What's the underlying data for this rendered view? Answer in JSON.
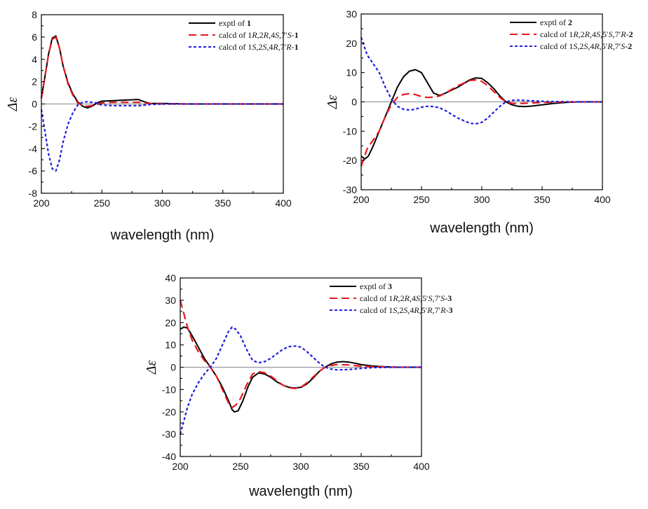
{
  "chart_data": [
    {
      "type": "line",
      "xlabel": "wavelength (nm)",
      "ylabel": "Δε",
      "xlim": [
        200,
        400
      ],
      "ylim": [
        -8,
        8
      ],
      "xticks": [
        200,
        250,
        300,
        350,
        400
      ],
      "yticks": [
        -8,
        -6,
        -4,
        -2,
        0,
        2,
        4,
        6,
        8
      ],
      "legend_position": "top-right",
      "series": [
        {
          "name": "exptl of 1",
          "style": "solid",
          "color": "#000000",
          "x": [
            200,
            203,
            206,
            209,
            212,
            215,
            218,
            222,
            226,
            230,
            234,
            238,
            242,
            246,
            250,
            260,
            270,
            280,
            285,
            290,
            300,
            320,
            350,
            380,
            400
          ],
          "y": [
            0.5,
            2.5,
            4.5,
            5.9,
            6.1,
            5.0,
            3.4,
            1.9,
            0.9,
            0.2,
            -0.2,
            -0.35,
            -0.2,
            0.1,
            0.25,
            0.3,
            0.35,
            0.4,
            0.2,
            0.05,
            0.05,
            0.0,
            0.0,
            0.0,
            0.0
          ]
        },
        {
          "name": "calcd of 1R,2R,4S,7'S-1",
          "style": "dashed",
          "color": "#e8171c",
          "x": [
            200,
            203,
            206,
            209,
            212,
            215,
            218,
            222,
            226,
            230,
            234,
            238,
            245,
            250,
            260,
            270,
            280,
            290,
            300,
            320,
            350,
            380,
            400
          ],
          "y": [
            0.5,
            2.5,
            4.5,
            5.8,
            6.0,
            5.0,
            3.4,
            1.8,
            0.8,
            0.1,
            -0.15,
            -0.2,
            -0.1,
            0.1,
            0.15,
            0.15,
            0.15,
            0.05,
            0.0,
            0.0,
            0.0,
            0.0,
            0.0
          ]
        },
        {
          "name": "calcd of 1S,2S,4R,7'R-1",
          "style": "dotted",
          "color": "#1f1fe0",
          "x": [
            200,
            203,
            206,
            209,
            212,
            215,
            218,
            222,
            226,
            230,
            234,
            238,
            245,
            250,
            260,
            270,
            280,
            290,
            300,
            320,
            350,
            380,
            400
          ],
          "y": [
            -0.5,
            -2.5,
            -4.5,
            -5.8,
            -6.0,
            -5.0,
            -3.4,
            -1.8,
            -0.8,
            -0.1,
            0.15,
            0.2,
            0.1,
            -0.1,
            -0.15,
            -0.15,
            -0.15,
            -0.05,
            0.0,
            0.0,
            0.0,
            0.0,
            0.0
          ]
        }
      ]
    },
    {
      "type": "line",
      "xlabel": "wavelength (nm)",
      "ylabel": "Δε",
      "xlim": [
        200,
        400
      ],
      "ylim": [
        -30,
        30
      ],
      "xticks": [
        200,
        250,
        300,
        350,
        400
      ],
      "yticks": [
        -30,
        -20,
        -10,
        0,
        10,
        20,
        30
      ],
      "legend_position": "top-right",
      "series": [
        {
          "name": "exptl of 2",
          "style": "solid",
          "color": "#000000",
          "x": [
            200,
            203,
            206,
            210,
            215,
            220,
            225,
            230,
            235,
            240,
            245,
            250,
            255,
            260,
            265,
            270,
            280,
            290,
            295,
            300,
            305,
            310,
            315,
            320,
            325,
            330,
            335,
            340,
            350,
            360,
            370,
            380,
            400
          ],
          "y": [
            -18.5,
            -19.5,
            -18.5,
            -15,
            -10,
            -5,
            0,
            5,
            8.5,
            10.5,
            11,
            10,
            6.5,
            3,
            2.2,
            3,
            5,
            7.5,
            8.2,
            8,
            6.5,
            4.5,
            2,
            0,
            -1,
            -1.5,
            -1.6,
            -1.5,
            -1.0,
            -0.5,
            -0.2,
            0,
            0
          ]
        },
        {
          "name": "calcd of 1R,2R,4S,5'S,7'R-2",
          "style": "dashed",
          "color": "#e8171c",
          "x": [
            200,
            205,
            210,
            215,
            220,
            225,
            230,
            235,
            240,
            245,
            250,
            255,
            260,
            265,
            270,
            280,
            290,
            295,
            300,
            305,
            310,
            315,
            320,
            325,
            330,
            335,
            340,
            350,
            360,
            380,
            400
          ],
          "y": [
            -22,
            -16,
            -13,
            -10,
            -5,
            -1,
            1.5,
            2.5,
            2.8,
            2.5,
            1.8,
            1.5,
            1.6,
            2,
            3,
            5.5,
            7.3,
            7.5,
            7,
            5.5,
            3.5,
            1.5,
            0,
            -0.5,
            -0.6,
            -0.5,
            -0.4,
            -0.2,
            -0.1,
            0,
            0
          ]
        },
        {
          "name": "calcd of 1S,2S,4R,5'R,7'S-2",
          "style": "dotted",
          "color": "#1f1fe0",
          "x": [
            200,
            205,
            210,
            215,
            220,
            225,
            230,
            235,
            240,
            245,
            250,
            255,
            260,
            265,
            270,
            280,
            290,
            295,
            300,
            305,
            310,
            315,
            320,
            325,
            330,
            335,
            340,
            350,
            360,
            380,
            400
          ],
          "y": [
            22,
            16,
            13,
            10,
            5,
            1,
            -1.5,
            -2.5,
            -2.8,
            -2.5,
            -1.8,
            -1.5,
            -1.6,
            -2,
            -3,
            -5.5,
            -7.3,
            -7.5,
            -7,
            -5.5,
            -3.5,
            -1.5,
            0,
            0.5,
            0.6,
            0.5,
            0.4,
            0.2,
            0.1,
            0,
            0
          ]
        }
      ]
    },
    {
      "type": "line",
      "xlabel": "wavelength (nm)",
      "ylabel": "Δε",
      "xlim": [
        200,
        400
      ],
      "ylim": [
        -40,
        40
      ],
      "xticks": [
        200,
        250,
        300,
        350,
        400
      ],
      "yticks": [
        -40,
        -30,
        -20,
        -10,
        0,
        10,
        20,
        30,
        40
      ],
      "legend_position": "top-right",
      "series": [
        {
          "name": "exptl of 3",
          "style": "solid",
          "color": "#000000",
          "x": [
            200,
            203,
            206,
            210,
            215,
            220,
            225,
            230,
            235,
            240,
            243,
            245,
            248,
            252,
            256,
            260,
            265,
            270,
            275,
            280,
            285,
            290,
            295,
            300,
            305,
            310,
            315,
            320,
            325,
            330,
            335,
            340,
            345,
            350,
            360,
            370,
            380,
            400
          ],
          "y": [
            17,
            18,
            17.5,
            14,
            9,
            4,
            0,
            -4,
            -9,
            -15,
            -19,
            -20,
            -19.5,
            -15,
            -9,
            -4.5,
            -2.5,
            -3,
            -4.5,
            -6.5,
            -8,
            -9,
            -9.3,
            -9,
            -7.5,
            -5,
            -2,
            0,
            1.5,
            2.3,
            2.5,
            2.3,
            1.8,
            1.2,
            0.5,
            0.2,
            0,
            0
          ]
        },
        {
          "name": "calcd of 1R,2R,4S,5'S,7'S-3",
          "style": "dashed",
          "color": "#e8171c",
          "x": [
            200,
            203,
            206,
            210,
            215,
            220,
            225,
            230,
            235,
            240,
            243,
            246,
            250,
            255,
            260,
            265,
            270,
            275,
            280,
            285,
            290,
            295,
            300,
            305,
            310,
            315,
            320,
            325,
            330,
            340,
            350,
            360,
            380,
            400
          ],
          "y": [
            30,
            24,
            18,
            12,
            7,
            3,
            0,
            -4,
            -10,
            -16,
            -18,
            -17,
            -14,
            -8,
            -3,
            -2,
            -2.5,
            -4,
            -6,
            -8,
            -9.2,
            -9.5,
            -9,
            -7,
            -4.5,
            -2,
            0,
            0.8,
            1.2,
            1.0,
            0.5,
            0.2,
            0,
            0
          ]
        },
        {
          "name": "calcd of 1S,2S,4R,5'R,7'R-3",
          "style": "dotted",
          "color": "#1f1fe0",
          "x": [
            200,
            203,
            206,
            210,
            215,
            220,
            225,
            230,
            235,
            240,
            243,
            246,
            250,
            255,
            260,
            265,
            270,
            275,
            280,
            285,
            290,
            295,
            300,
            305,
            310,
            315,
            320,
            325,
            330,
            340,
            350,
            360,
            380,
            400
          ],
          "y": [
            -30,
            -24,
            -18,
            -12,
            -7,
            -3,
            0,
            4,
            10,
            16,
            18,
            17,
            14,
            8,
            3,
            2,
            2.5,
            4,
            6,
            8,
            9.2,
            9.5,
            9,
            7,
            4.5,
            2,
            0,
            -0.8,
            -1.2,
            -1.0,
            -0.5,
            -0.2,
            0,
            0
          ]
        }
      ]
    }
  ],
  "legends": [
    [
      {
        "prefix": "exptl of ",
        "parts": [
          {
            "t": "1",
            "s": "b"
          }
        ]
      },
      {
        "prefix": "calcd of 1",
        "parts": [
          {
            "t": "R",
            "s": "i"
          },
          {
            "t": ",2"
          },
          {
            "t": "R",
            "s": "i"
          },
          {
            "t": ",4"
          },
          {
            "t": "S",
            "s": "i"
          },
          {
            "t": ",7′"
          },
          {
            "t": "S",
            "s": "i"
          },
          {
            "t": "-"
          },
          {
            "t": "1",
            "s": "b"
          }
        ]
      },
      {
        "prefix": "calcd of 1",
        "parts": [
          {
            "t": "S",
            "s": "i"
          },
          {
            "t": ",2"
          },
          {
            "t": "S",
            "s": "i"
          },
          {
            "t": ",4"
          },
          {
            "t": "R",
            "s": "i"
          },
          {
            "t": ",7′"
          },
          {
            "t": "R",
            "s": "i"
          },
          {
            "t": "-"
          },
          {
            "t": "1",
            "s": "b"
          }
        ]
      }
    ],
    [
      {
        "prefix": "exptl of ",
        "parts": [
          {
            "t": "2",
            "s": "b"
          }
        ]
      },
      {
        "prefix": "calcd of 1",
        "parts": [
          {
            "t": "R",
            "s": "i"
          },
          {
            "t": ",2"
          },
          {
            "t": "R",
            "s": "i"
          },
          {
            "t": ",4"
          },
          {
            "t": "S",
            "s": "i"
          },
          {
            "t": ",5′"
          },
          {
            "t": "S",
            "s": "i"
          },
          {
            "t": ",7′"
          },
          {
            "t": "R",
            "s": "i"
          },
          {
            "t": "-"
          },
          {
            "t": "2",
            "s": "b"
          }
        ]
      },
      {
        "prefix": "calcd of 1",
        "parts": [
          {
            "t": "S",
            "s": "i"
          },
          {
            "t": ",2"
          },
          {
            "t": "S",
            "s": "i"
          },
          {
            "t": ",4"
          },
          {
            "t": "R",
            "s": "i"
          },
          {
            "t": ",5′"
          },
          {
            "t": "R",
            "s": "i"
          },
          {
            "t": ",7′"
          },
          {
            "t": "S",
            "s": "i"
          },
          {
            "t": "-"
          },
          {
            "t": "2",
            "s": "b"
          }
        ]
      }
    ],
    [
      {
        "prefix": "exptl of ",
        "parts": [
          {
            "t": "3",
            "s": "b"
          }
        ]
      },
      {
        "prefix": "calcd of 1",
        "parts": [
          {
            "t": "R",
            "s": "i"
          },
          {
            "t": ",2"
          },
          {
            "t": "R",
            "s": "i"
          },
          {
            "t": ",4"
          },
          {
            "t": "S",
            "s": "i"
          },
          {
            "t": ",5′"
          },
          {
            "t": "S",
            "s": "i"
          },
          {
            "t": ",7′"
          },
          {
            "t": "S",
            "s": "i"
          },
          {
            "t": "-"
          },
          {
            "t": "3",
            "s": "b"
          }
        ]
      },
      {
        "prefix": "calcd of 1",
        "parts": [
          {
            "t": "S",
            "s": "i"
          },
          {
            "t": ",2"
          },
          {
            "t": "S",
            "s": "i"
          },
          {
            "t": ",4"
          },
          {
            "t": "R",
            "s": "i"
          },
          {
            "t": ",5′"
          },
          {
            "t": "R",
            "s": "i"
          },
          {
            "t": ",7′"
          },
          {
            "t": "R",
            "s": "i"
          },
          {
            "t": "-"
          },
          {
            "t": "3",
            "s": "b"
          }
        ]
      }
    ]
  ]
}
